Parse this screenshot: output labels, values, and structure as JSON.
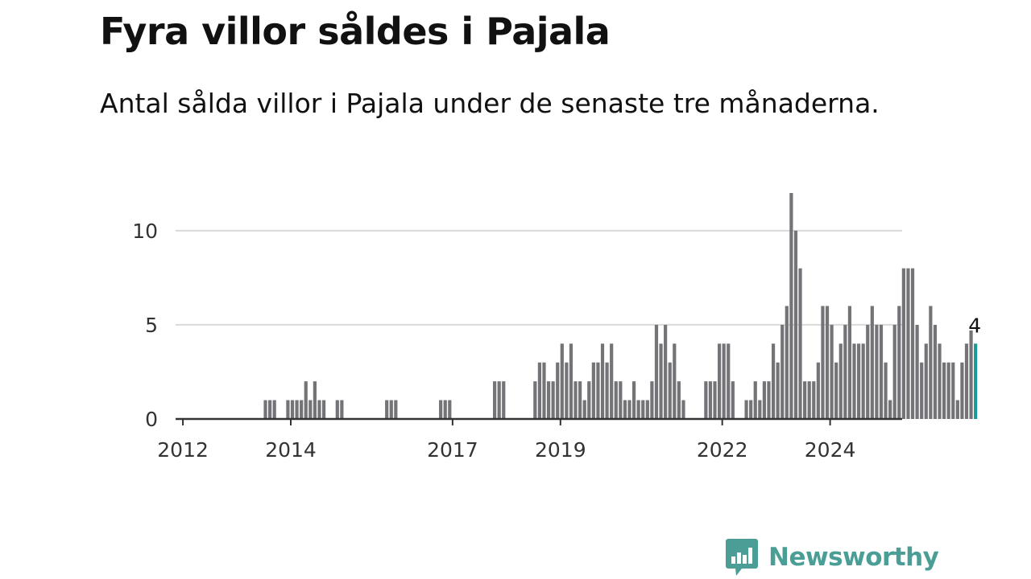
{
  "header": {
    "title": "Fyra villor såldes i Pajala",
    "subtitle": "Antal sålda villor i Pajala under de senaste tre månaderna."
  },
  "brand": {
    "name": "Newsworthy",
    "logo_icon": "bar-chart-speech-bubble-icon",
    "color": "#4a9e96"
  },
  "colors": {
    "bar": "#747378",
    "highlight": "#1a9a96",
    "grid": "#d9d9d9",
    "axis": "#333333"
  },
  "chart_data": {
    "type": "bar",
    "title": "Fyra villor såldes i Pajala",
    "subtitle": "Antal sålda villor i Pajala under de senaste tre månaderna.",
    "xlabel": "",
    "ylabel": "",
    "ylim": [
      0,
      12
    ],
    "yticks": [
      0,
      5,
      10
    ],
    "ytick_labels": [
      "0",
      "5",
      "10"
    ],
    "xticks": [
      2012,
      2014,
      2017,
      2019,
      2022,
      2024
    ],
    "xtick_labels": [
      "2012",
      "2014",
      "2017",
      "2019",
      "2022",
      "2024"
    ],
    "grid": true,
    "start": "2011-12",
    "frequency": "monthly",
    "values": [
      0,
      0,
      0,
      0,
      0,
      0,
      0,
      0,
      0,
      0,
      0,
      0,
      0,
      0,
      0,
      0,
      0,
      0,
      0,
      1,
      1,
      1,
      0,
      0,
      1,
      1,
      1,
      1,
      2,
      1,
      2,
      1,
      1,
      0,
      0,
      1,
      1,
      0,
      0,
      0,
      0,
      0,
      0,
      0,
      0,
      0,
      1,
      1,
      1,
      0,
      0,
      0,
      0,
      0,
      0,
      0,
      0,
      0,
      1,
      1,
      1,
      0,
      0,
      0,
      0,
      0,
      0,
      0,
      0,
      0,
      2,
      2,
      2,
      0,
      0,
      0,
      0,
      0,
      0,
      2,
      3,
      3,
      2,
      2,
      3,
      4,
      3,
      4,
      2,
      2,
      1,
      2,
      3,
      3,
      4,
      3,
      4,
      2,
      2,
      1,
      1,
      2,
      1,
      1,
      1,
      2,
      5,
      4,
      5,
      3,
      4,
      2,
      1,
      0,
      0,
      0,
      0,
      2,
      2,
      2,
      4,
      4,
      4,
      2,
      0,
      0,
      1,
      1,
      2,
      1,
      2,
      2,
      4,
      3,
      5,
      6,
      12,
      10,
      8,
      2,
      2,
      2,
      3,
      6,
      6,
      5,
      3,
      4,
      5,
      6,
      4,
      4,
      4,
      5,
      6,
      5,
      5,
      3,
      1,
      5,
      6,
      8,
      8,
      8,
      5,
      3,
      4,
      6,
      5,
      4,
      3,
      3,
      3,
      1,
      3,
      4,
      4.7,
      4
    ],
    "highlight_last": true,
    "annotation": {
      "label": "4",
      "value": 4
    }
  }
}
